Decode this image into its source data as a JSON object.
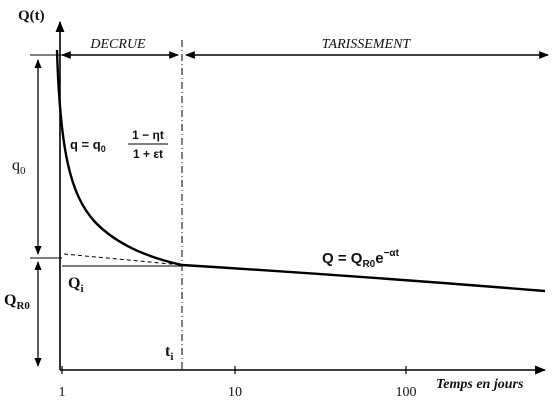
{
  "axes": {
    "y_label": "Q(t)",
    "x_label": "Temps en jours",
    "x_ticks": [
      "1",
      "10",
      "100"
    ]
  },
  "phases": {
    "decrue": "DECRUE",
    "tarissement": "TARISSEMENT"
  },
  "labels": {
    "q0_main": "q",
    "q0_sub": "0",
    "qr0_main": "Q",
    "qr0_sub": "R0",
    "qi_main": "Q",
    "qi_sub": "i",
    "ti_main": "t",
    "ti_sub": "i"
  },
  "formulas": {
    "decrue": {
      "lhs": "q = q",
      "lhs_sub": "0",
      "numerator": "1 − ηt",
      "denominator": "1 + εt"
    },
    "tarissement": {
      "lhs": "Q = Q",
      "lhs_sub": "R0",
      "base": "e",
      "exponent": "−αt"
    }
  },
  "colors": {
    "line": "#000000",
    "background": "#ffffff"
  }
}
